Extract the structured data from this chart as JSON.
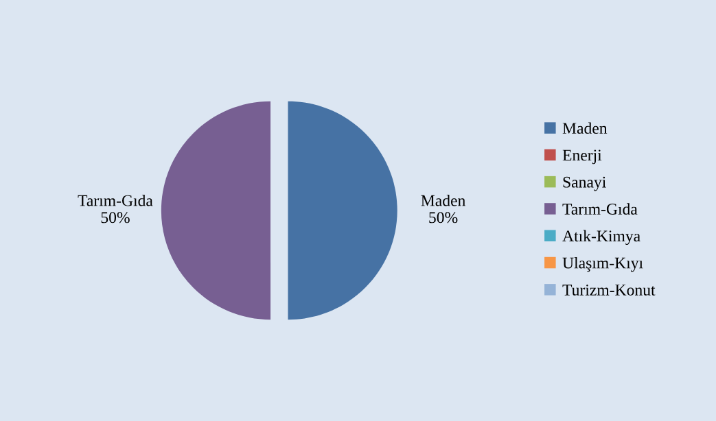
{
  "chart_data": {
    "type": "pie",
    "categories": [
      "Maden",
      "Enerji",
      "Sanayi",
      "Tarım-Gıda",
      "Atık-Kimya",
      "Ulaşım-Kıyı",
      "Turizm-Konut"
    ],
    "values": [
      50,
      0,
      0,
      50,
      0,
      0,
      0
    ],
    "colors": [
      "#4672a4",
      "#c0504d",
      "#9bbb59",
      "#775f92",
      "#4bacc6",
      "#f79646",
      "#95b3d7"
    ],
    "value_labels": [
      "50%",
      null,
      null,
      "50%",
      null,
      null,
      null
    ],
    "legend": "right"
  }
}
